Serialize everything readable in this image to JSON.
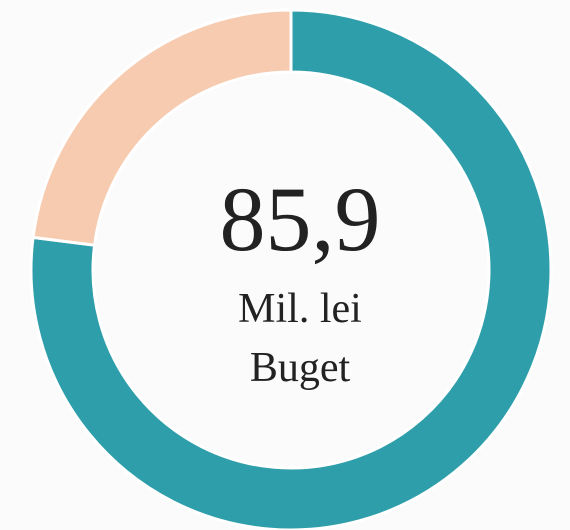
{
  "chart_data": {
    "type": "donut",
    "values": [
      77,
      23
    ],
    "colors": [
      "#2e9faa",
      "#f7cbb0"
    ],
    "center_text": "85,9",
    "center_unit": "Mil. lei",
    "center_caption": "Buget"
  }
}
